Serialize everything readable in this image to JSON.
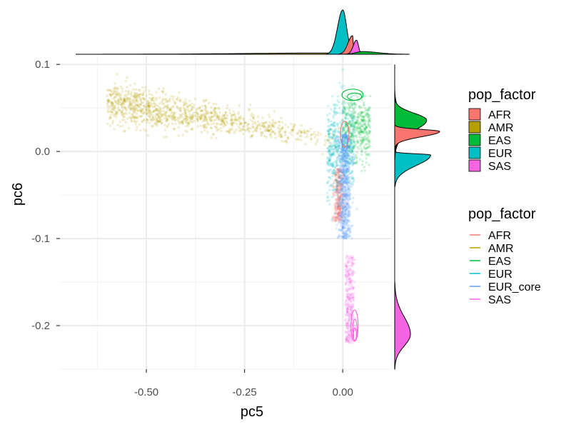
{
  "chart_data": {
    "type": "scatter",
    "xlabel": "pc5",
    "ylabel": "pc6",
    "xlim": [
      -0.72,
      0.125
    ],
    "ylim": [
      -0.25,
      0.11
    ],
    "x_ticks": [
      {
        "value": -0.5,
        "label": "-0.50"
      },
      {
        "value": -0.25,
        "label": "-0.25"
      },
      {
        "value": 0.0,
        "label": "0.00"
      }
    ],
    "y_ticks": [
      {
        "value": 0.1,
        "label": "0.1"
      },
      {
        "value": 0.0,
        "label": "0.0"
      },
      {
        "value": -0.1,
        "label": "-0.1"
      },
      {
        "value": -0.2,
        "label": "-0.2"
      }
    ],
    "grid": true,
    "legends": [
      {
        "title": "pop_factor",
        "kind": "fill",
        "placement": "right",
        "entries": [
          "AFR",
          "AMR",
          "EAS",
          "EUR",
          "SAS"
        ]
      },
      {
        "title": "pop_factor",
        "kind": "line",
        "placement": "right",
        "entries": [
          "AFR",
          "AMR",
          "EAS",
          "EUR",
          "EUR_core",
          "SAS"
        ]
      }
    ],
    "colors": {
      "AFR": "#F8766D",
      "AMR": "#B79F00",
      "EAS": "#00BA38",
      "EUR": "#00BFC4",
      "EUR_core": "#619CFF",
      "SAS": "#F564E3"
    },
    "point_clouds": [
      {
        "group": "AMR",
        "count": 1100,
        "x_range": [
          -0.6,
          0.0
        ],
        "y_center": 0.012,
        "y_spread": 0.012
      },
      {
        "group": "EAS",
        "count": 400,
        "x_range": [
          0.0,
          0.07
        ],
        "y_center": 0.025,
        "y_spread": 0.018
      },
      {
        "group": "AFR",
        "count": 300,
        "x_range": [
          -0.02,
          0.01
        ],
        "y_center": -0.04,
        "y_spread": 0.04
      },
      {
        "group": "EUR",
        "count": 500,
        "x_range": [
          -0.04,
          0.03
        ],
        "y_center": 0.0,
        "y_spread": 0.03
      },
      {
        "group": "EUR_core",
        "count": 600,
        "x_range": [
          -0.01,
          0.03
        ],
        "y_center": -0.04,
        "y_spread": 0.05
      },
      {
        "group": "SAS",
        "count": 300,
        "x_range": [
          0.0,
          0.03
        ],
        "y_center": -0.17,
        "y_spread": 0.04
      }
    ],
    "top_density": [
      {
        "group": "AMR",
        "x_from": -0.68,
        "x_to": 0.15,
        "peak_x": -0.01,
        "peak_rel": 0.03
      },
      {
        "group": "EUR",
        "x_from": -0.04,
        "x_to": 0.03,
        "peak_x": 0.0,
        "peak_rel": 1.0
      },
      {
        "group": "AFR",
        "x_from": -0.01,
        "x_to": 0.03,
        "peak_x": 0.025,
        "peak_rel": 0.42
      },
      {
        "group": "SAS",
        "x_from": 0.01,
        "x_to": 0.05,
        "peak_x": 0.035,
        "peak_rel": 0.32
      },
      {
        "group": "EAS",
        "x_from": 0.0,
        "x_to": 0.17,
        "peak_x": 0.05,
        "peak_rel": 0.06
      }
    ],
    "right_density": [
      {
        "group": "EAS",
        "y_from": 0.0,
        "y_to": 0.06,
        "peak_y": 0.036,
        "peak_rel": 0.71
      },
      {
        "group": "AMR",
        "y_from": -0.01,
        "y_to": 0.07,
        "peak_y": 0.03,
        "peak_rel": 0.25
      },
      {
        "group": "AFR",
        "y_from": 0.005,
        "y_to": 0.03,
        "peak_y": 0.023,
        "peak_rel": 1.0
      },
      {
        "group": "EUR",
        "y_from": -0.04,
        "y_to": 0.0,
        "peak_y": -0.004,
        "peak_rel": 0.8
      },
      {
        "group": "SAS",
        "y_from": -0.25,
        "y_to": -0.15,
        "peak_y": -0.21,
        "peak_rel": 0.35
      }
    ]
  }
}
